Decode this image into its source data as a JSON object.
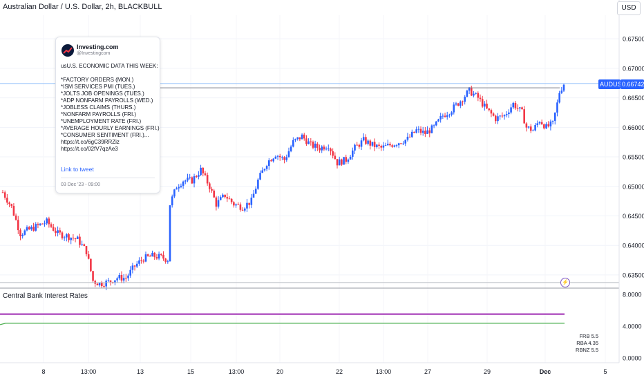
{
  "title": "Australian Dollar / U.S. Dollar, 2h, BLACKBULL",
  "currency": "USD",
  "symbol_label": "AUDUSD",
  "last_price": "0.66742",
  "indicator_title": "Central Bank Interest Rates",
  "tweet": {
    "name": "Investing.com",
    "handle": "@Investingcom",
    "body": "usU.S. ECONOMIC DATA THIS WEEK:\n\n*FACTORY ORDERS (MON.)\n*ISM SERVICES PMI (TUES.)\n*JOLTS JOB OPENINGS (TUES.)\n*ADP NONFARM PAYROLLS (WED.)\n*JOBLESS CLAIMS (THURS.)\n*NONFARM PAYROLLS (FRI.)\n*UNEMPLOYMENT RATE (FRI.)\n*AVERAGE HOURLY EARNINGS (FRI.)\n*CONSUMER SENTIMENT (FRI.)... https://t.co/6gC39RRZiz https://t.co/02fV7qzAe3",
    "link_text": "Link to tweet",
    "date": "03 Dec '23 - 09:00"
  },
  "rates_legend": [
    {
      "name": "FRB",
      "value": "5.5"
    },
    {
      "name": "RBA",
      "value": "4.35"
    },
    {
      "name": "RBNZ",
      "value": "5.5"
    }
  ],
  "colors": {
    "up": "#2962ff",
    "down": "#f23645",
    "frb": "#9c27b0",
    "rba": "#4caf50",
    "price_line": "#2962ff",
    "resistance": "#787b86"
  },
  "chart_data": [
    {
      "type": "candlestick",
      "title": "Australian Dollar / U.S. Dollar, 2h, BLACKBULL",
      "y_ticks": [
        "0.67500",
        "0.67000",
        "0.66500",
        "0.66000",
        "0.65500",
        "0.65000",
        "0.64500",
        "0.64000",
        "0.63500"
      ],
      "ylim": [
        0.633,
        0.679
      ],
      "x_ticks": [
        "8",
        "13:00",
        "13",
        "15",
        "13:00",
        "20",
        "22",
        "13:00",
        "27",
        "29",
        "Dec",
        "5"
      ],
      "last_price": 0.66742,
      "resistance_level": 0.6667,
      "trend_waypoints": [
        [
          0,
          0.649
        ],
        [
          4,
          0.6465
        ],
        [
          8,
          0.642
        ],
        [
          14,
          0.643
        ],
        [
          20,
          0.644
        ],
        [
          25,
          0.642
        ],
        [
          30,
          0.6415
        ],
        [
          34,
          0.641
        ],
        [
          38,
          0.639
        ],
        [
          41,
          0.634
        ],
        [
          44,
          0.6335
        ],
        [
          48,
          0.6338
        ],
        [
          52,
          0.6345
        ],
        [
          56,
          0.6345
        ],
        [
          60,
          0.6365
        ],
        [
          64,
          0.6378
        ],
        [
          68,
          0.6382
        ],
        [
          72,
          0.638
        ],
        [
          75,
          0.6376
        ],
        [
          76,
          0.647
        ],
        [
          79,
          0.65
        ],
        [
          82,
          0.651
        ],
        [
          86,
          0.651
        ],
        [
          90,
          0.6528
        ],
        [
          94,
          0.65
        ],
        [
          97,
          0.647
        ],
        [
          101,
          0.6485
        ],
        [
          105,
          0.647
        ],
        [
          109,
          0.6465
        ],
        [
          113,
          0.6475
        ],
        [
          116,
          0.651
        ],
        [
          120,
          0.654
        ],
        [
          124,
          0.6555
        ],
        [
          128,
          0.6545
        ],
        [
          132,
          0.6575
        ],
        [
          136,
          0.6585
        ],
        [
          140,
          0.657
        ],
        [
          144,
          0.6565
        ],
        [
          148,
          0.657
        ],
        [
          152,
          0.654
        ],
        [
          156,
          0.6545
        ],
        [
          160,
          0.6565
        ],
        [
          164,
          0.6578
        ],
        [
          168,
          0.657
        ],
        [
          172,
          0.6565
        ],
        [
          176,
          0.657
        ],
        [
          180,
          0.6575
        ],
        [
          184,
          0.658
        ],
        [
          188,
          0.6595
        ],
        [
          192,
          0.659
        ],
        [
          196,
          0.66
        ],
        [
          200,
          0.662
        ],
        [
          204,
          0.663
        ],
        [
          208,
          0.6645
        ],
        [
          212,
          0.6662
        ],
        [
          216,
          0.665
        ],
        [
          220,
          0.663
        ],
        [
          224,
          0.6615
        ],
        [
          228,
          0.662
        ],
        [
          232,
          0.664
        ],
        [
          236,
          0.6625
        ],
        [
          238,
          0.66
        ],
        [
          241,
          0.6595
        ],
        [
          244,
          0.6612
        ],
        [
          247,
          0.66
        ],
        [
          250,
          0.6606
        ],
        [
          252,
          0.664
        ],
        [
          253,
          0.666
        ],
        [
          255,
          0.6674
        ]
      ]
    },
    {
      "type": "line",
      "title": "Central Bank Interest Rates",
      "y_ticks": [
        "8.0000",
        "4.0000",
        "0.0000"
      ],
      "ylim": [
        -0.6,
        8.5
      ],
      "series": [
        {
          "name": "FRB",
          "value": 5.5
        },
        {
          "name": "RBA",
          "value": 4.35
        },
        {
          "name": "RBNZ",
          "value": 5.5
        }
      ]
    }
  ]
}
